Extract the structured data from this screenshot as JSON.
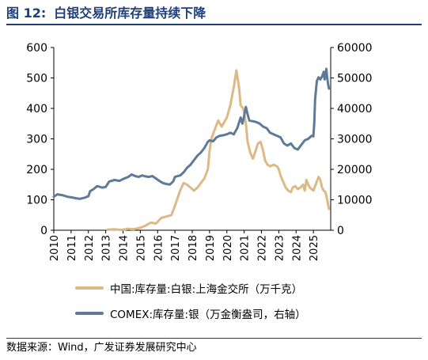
{
  "header": {
    "figure_number": "图 12:",
    "title": "白银交易所库存量持续下降"
  },
  "source": "数据来源：Wind，广发证券发展研究中心",
  "colors": {
    "title": "#1f3f7a",
    "series_china": "#dcb985",
    "series_comex": "#5d7b98"
  },
  "chart_data": {
    "type": "line",
    "title": "白银交易所库存量持续下降",
    "x_ticks": [
      "2010",
      "2011",
      "2012",
      "2013",
      "2014",
      "2015",
      "2016",
      "2017",
      "2018",
      "2019",
      "2020",
      "2021",
      "2022",
      "2023",
      "2024",
      "2025"
    ],
    "x_range": [
      2010.0,
      2026.0
    ],
    "y_left": {
      "range": [
        0,
        600
      ],
      "ticks": [
        "0",
        "100",
        "200",
        "300",
        "400",
        "500",
        "600"
      ]
    },
    "y_right": {
      "range": [
        0,
        60000
      ],
      "ticks": [
        "0",
        "10000",
        "20000",
        "30000",
        "40000",
        "50000",
        "60000"
      ]
    },
    "grid": false,
    "legend_position": "bottom",
    "series": [
      {
        "name": "中国:库存量:白银:上海金交所（万千克）",
        "axis": "left",
        "color": "#dcb985",
        "points": [
          [
            2013.1,
            2
          ],
          [
            2013.5,
            3
          ],
          [
            2013.9,
            1
          ],
          [
            2014.3,
            5
          ],
          [
            2014.6,
            3
          ],
          [
            2015.0,
            8
          ],
          [
            2015.3,
            15
          ],
          [
            2015.6,
            25
          ],
          [
            2015.9,
            22
          ],
          [
            2016.2,
            40
          ],
          [
            2016.5,
            45
          ],
          [
            2016.8,
            50
          ],
          [
            2017.0,
            80
          ],
          [
            2017.3,
            130
          ],
          [
            2017.5,
            155
          ],
          [
            2017.7,
            150
          ],
          [
            2017.9,
            140
          ],
          [
            2018.1,
            130
          ],
          [
            2018.3,
            140
          ],
          [
            2018.5,
            155
          ],
          [
            2018.7,
            170
          ],
          [
            2018.9,
            200
          ],
          [
            2019.0,
            260
          ],
          [
            2019.1,
            300
          ],
          [
            2019.3,
            330
          ],
          [
            2019.5,
            360
          ],
          [
            2019.7,
            340
          ],
          [
            2019.85,
            355
          ],
          [
            2020.0,
            370
          ],
          [
            2020.2,
            410
          ],
          [
            2020.4,
            470
          ],
          [
            2020.55,
            525
          ],
          [
            2020.7,
            470
          ],
          [
            2020.8,
            410
          ],
          [
            2020.95,
            400
          ],
          [
            2021.1,
            350
          ],
          [
            2021.2,
            290
          ],
          [
            2021.35,
            255
          ],
          [
            2021.5,
            235
          ],
          [
            2021.6,
            250
          ],
          [
            2021.8,
            285
          ],
          [
            2021.95,
            290
          ],
          [
            2022.1,
            260
          ],
          [
            2022.2,
            230
          ],
          [
            2022.35,
            215
          ],
          [
            2022.5,
            210
          ],
          [
            2022.7,
            215
          ],
          [
            2022.9,
            210
          ],
          [
            2023.0,
            200
          ],
          [
            2023.1,
            180
          ],
          [
            2023.25,
            160
          ],
          [
            2023.4,
            140
          ],
          [
            2023.55,
            130
          ],
          [
            2023.7,
            125
          ],
          [
            2023.8,
            140
          ],
          [
            2023.95,
            145
          ],
          [
            2024.1,
            135
          ],
          [
            2024.25,
            140
          ],
          [
            2024.4,
            150
          ],
          [
            2024.5,
            130
          ],
          [
            2024.6,
            165
          ],
          [
            2024.7,
            150
          ],
          [
            2024.8,
            140
          ],
          [
            2024.9,
            135
          ],
          [
            2025.0,
            130
          ],
          [
            2025.1,
            145
          ],
          [
            2025.2,
            160
          ],
          [
            2025.3,
            175
          ],
          [
            2025.4,
            165
          ],
          [
            2025.5,
            140
          ],
          [
            2025.6,
            130
          ],
          [
            2025.7,
            125
          ],
          [
            2025.8,
            100
          ],
          [
            2025.9,
            70
          ]
        ]
      },
      {
        "name": "COMEX:库存量:银（万金衡盎司，右轴）",
        "axis": "right",
        "color": "#5d7b98",
        "points": [
          [
            2010.0,
            11000
          ],
          [
            2010.2,
            11800
          ],
          [
            2010.5,
            11500
          ],
          [
            2010.8,
            11000
          ],
          [
            2011.0,
            10800
          ],
          [
            2011.3,
            10500
          ],
          [
            2011.5,
            10300
          ],
          [
            2011.8,
            10700
          ],
          [
            2012.0,
            11200
          ],
          [
            2012.1,
            12800
          ],
          [
            2012.3,
            13500
          ],
          [
            2012.5,
            14500
          ],
          [
            2012.8,
            14000
          ],
          [
            2013.0,
            14200
          ],
          [
            2013.2,
            16000
          ],
          [
            2013.5,
            16500
          ],
          [
            2013.8,
            16200
          ],
          [
            2014.0,
            16800
          ],
          [
            2014.3,
            17500
          ],
          [
            2014.5,
            18300
          ],
          [
            2014.7,
            17800
          ],
          [
            2014.9,
            17500
          ],
          [
            2015.1,
            18000
          ],
          [
            2015.3,
            17700
          ],
          [
            2015.5,
            17500
          ],
          [
            2015.7,
            17800
          ],
          [
            2015.9,
            17000
          ],
          [
            2016.1,
            16200
          ],
          [
            2016.3,
            15500
          ],
          [
            2016.5,
            15200
          ],
          [
            2016.7,
            15000
          ],
          [
            2016.9,
            16000
          ],
          [
            2017.0,
            17500
          ],
          [
            2017.3,
            18000
          ],
          [
            2017.5,
            19000
          ],
          [
            2017.7,
            20500
          ],
          [
            2017.9,
            21500
          ],
          [
            2018.1,
            23000
          ],
          [
            2018.3,
            24500
          ],
          [
            2018.5,
            25500
          ],
          [
            2018.7,
            27000
          ],
          [
            2018.9,
            29000
          ],
          [
            2019.0,
            29500
          ],
          [
            2019.2,
            29200
          ],
          [
            2019.4,
            30500
          ],
          [
            2019.6,
            31000
          ],
          [
            2019.8,
            31200
          ],
          [
            2020.0,
            31500
          ],
          [
            2020.2,
            32000
          ],
          [
            2020.4,
            31500
          ],
          [
            2020.6,
            33500
          ],
          [
            2020.8,
            37000
          ],
          [
            2020.9,
            35000
          ],
          [
            2021.0,
            37500
          ],
          [
            2021.1,
            40500
          ],
          [
            2021.2,
            38000
          ],
          [
            2021.3,
            36000
          ],
          [
            2021.5,
            35800
          ],
          [
            2021.7,
            35500
          ],
          [
            2021.9,
            35000
          ],
          [
            2022.1,
            34000
          ],
          [
            2022.3,
            33500
          ],
          [
            2022.5,
            32000
          ],
          [
            2022.7,
            31500
          ],
          [
            2022.9,
            31000
          ],
          [
            2023.1,
            30500
          ],
          [
            2023.3,
            28500
          ],
          [
            2023.5,
            27800
          ],
          [
            2023.7,
            28500
          ],
          [
            2023.9,
            27000
          ],
          [
            2024.1,
            26500
          ],
          [
            2024.3,
            28000
          ],
          [
            2024.5,
            29500
          ],
          [
            2024.7,
            30000
          ],
          [
            2024.9,
            31000
          ],
          [
            2025.0,
            30800
          ],
          [
            2025.05,
            35000
          ],
          [
            2025.1,
            43000
          ],
          [
            2025.2,
            49000
          ],
          [
            2025.3,
            50200
          ],
          [
            2025.4,
            49500
          ],
          [
            2025.5,
            50500
          ],
          [
            2025.6,
            52000
          ],
          [
            2025.65,
            49500
          ],
          [
            2025.7,
            51000
          ],
          [
            2025.75,
            53000
          ],
          [
            2025.8,
            50000
          ],
          [
            2025.85,
            48000
          ],
          [
            2025.9,
            46500
          ]
        ]
      }
    ]
  }
}
